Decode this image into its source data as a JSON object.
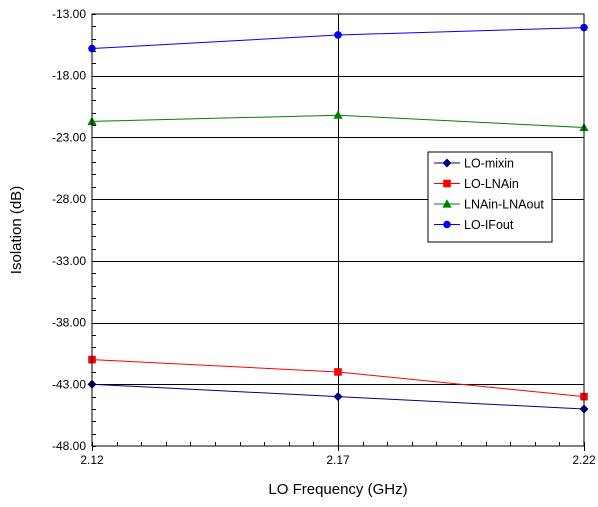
{
  "chart_data": {
    "type": "line",
    "xlabel": "LO Frequency (GHz)",
    "ylabel": "Isolation (dB)",
    "x": [
      2.12,
      2.17,
      2.22
    ],
    "x_tick_labels": [
      "2.12",
      "2.17",
      "2.22"
    ],
    "xlim": [
      2.12,
      2.22
    ],
    "ylim": [
      -48,
      -13
    ],
    "y_ticks": [
      -13,
      -18,
      -23,
      -28,
      -33,
      -38,
      -43,
      -48
    ],
    "y_tick_labels": [
      "-13.00",
      "-18.00",
      "-23.00",
      "-28.00",
      "-33.00",
      "-38.00",
      "-43.00",
      "-48.00"
    ],
    "grid": "major",
    "legend_position": "right",
    "series": [
      {
        "name": "LO-mixin",
        "values": [
          -43.0,
          -44.0,
          -45.0
        ],
        "color": "#000080",
        "marker": "diamond"
      },
      {
        "name": "LO-LNAin",
        "values": [
          -41.0,
          -42.0,
          -44.0
        ],
        "color": "#ff0000",
        "marker": "square"
      },
      {
        "name": "LNAin-LNAout",
        "values": [
          -21.7,
          -21.2,
          -22.2
        ],
        "color": "#008000",
        "marker": "triangle"
      },
      {
        "name": "LO-IFout",
        "values": [
          -15.8,
          -14.7,
          -14.1
        ],
        "color": "#0000ff",
        "marker": "circle"
      }
    ]
  }
}
